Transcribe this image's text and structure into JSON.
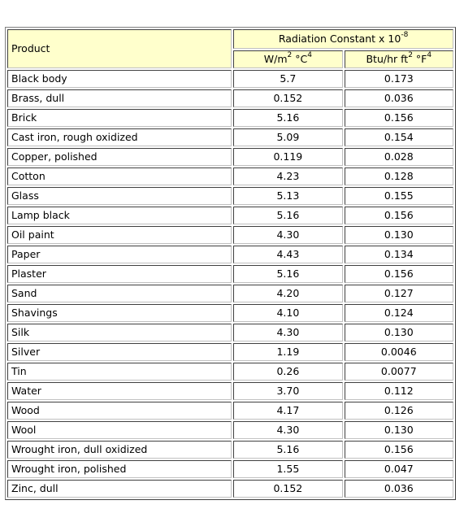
{
  "table": {
    "product_header": "Product",
    "group_header": {
      "text": "Radiation Constant x 10",
      "exp": "-8"
    },
    "unit_headers": [
      {
        "pre": "W/m",
        "sup1": "2",
        "mid": " °C",
        "sup2": "4"
      },
      {
        "pre": "Btu/hr ft",
        "sup1": "2",
        "mid": " °F",
        "sup2": "4"
      }
    ],
    "rows": [
      {
        "product": "Black body",
        "si": "5.7",
        "imperial": "0.173"
      },
      {
        "product": "Brass, dull",
        "si": "0.152",
        "imperial": "0.036"
      },
      {
        "product": "Brick",
        "si": "5.16",
        "imperial": "0.156"
      },
      {
        "product": "Cast iron, rough oxidized",
        "si": "5.09",
        "imperial": "0.154"
      },
      {
        "product": "Copper, polished",
        "si": "0.119",
        "imperial": "0.028"
      },
      {
        "product": "Cotton",
        "si": "4.23",
        "imperial": "0.128"
      },
      {
        "product": "Glass",
        "si": "5.13",
        "imperial": "0.155"
      },
      {
        "product": "Lamp black",
        "si": "5.16",
        "imperial": "0.156"
      },
      {
        "product": "Oil paint",
        "si": "4.30",
        "imperial": "0.130"
      },
      {
        "product": "Paper",
        "si": "4.43",
        "imperial": "0.134"
      },
      {
        "product": "Plaster",
        "si": "5.16",
        "imperial": "0.156"
      },
      {
        "product": "Sand",
        "si": "4.20",
        "imperial": "0.127"
      },
      {
        "product": "Shavings",
        "si": "4.10",
        "imperial": "0.124"
      },
      {
        "product": "Silk",
        "si": "4.30",
        "imperial": "0.130"
      },
      {
        "product": "Silver",
        "si": "1.19",
        "imperial": "0.0046"
      },
      {
        "product": "Tin",
        "si": "0.26",
        "imperial": "0.0077"
      },
      {
        "product": "Water",
        "si": "3.70",
        "imperial": "0.112"
      },
      {
        "product": "Wood",
        "si": "4.17",
        "imperial": "0.126"
      },
      {
        "product": "Wool",
        "si": "4.30",
        "imperial": "0.130"
      },
      {
        "product": "Wrought iron, dull oxidized",
        "si": "5.16",
        "imperial": "0.156"
      },
      {
        "product": "Wrought iron, polished",
        "si": "1.55",
        "imperial": "0.047"
      },
      {
        "product": "Zinc, dull",
        "si": "0.152",
        "imperial": "0.036"
      }
    ]
  },
  "colors": {
    "header_background": "#ffffcc",
    "cell_border": "#808080"
  }
}
